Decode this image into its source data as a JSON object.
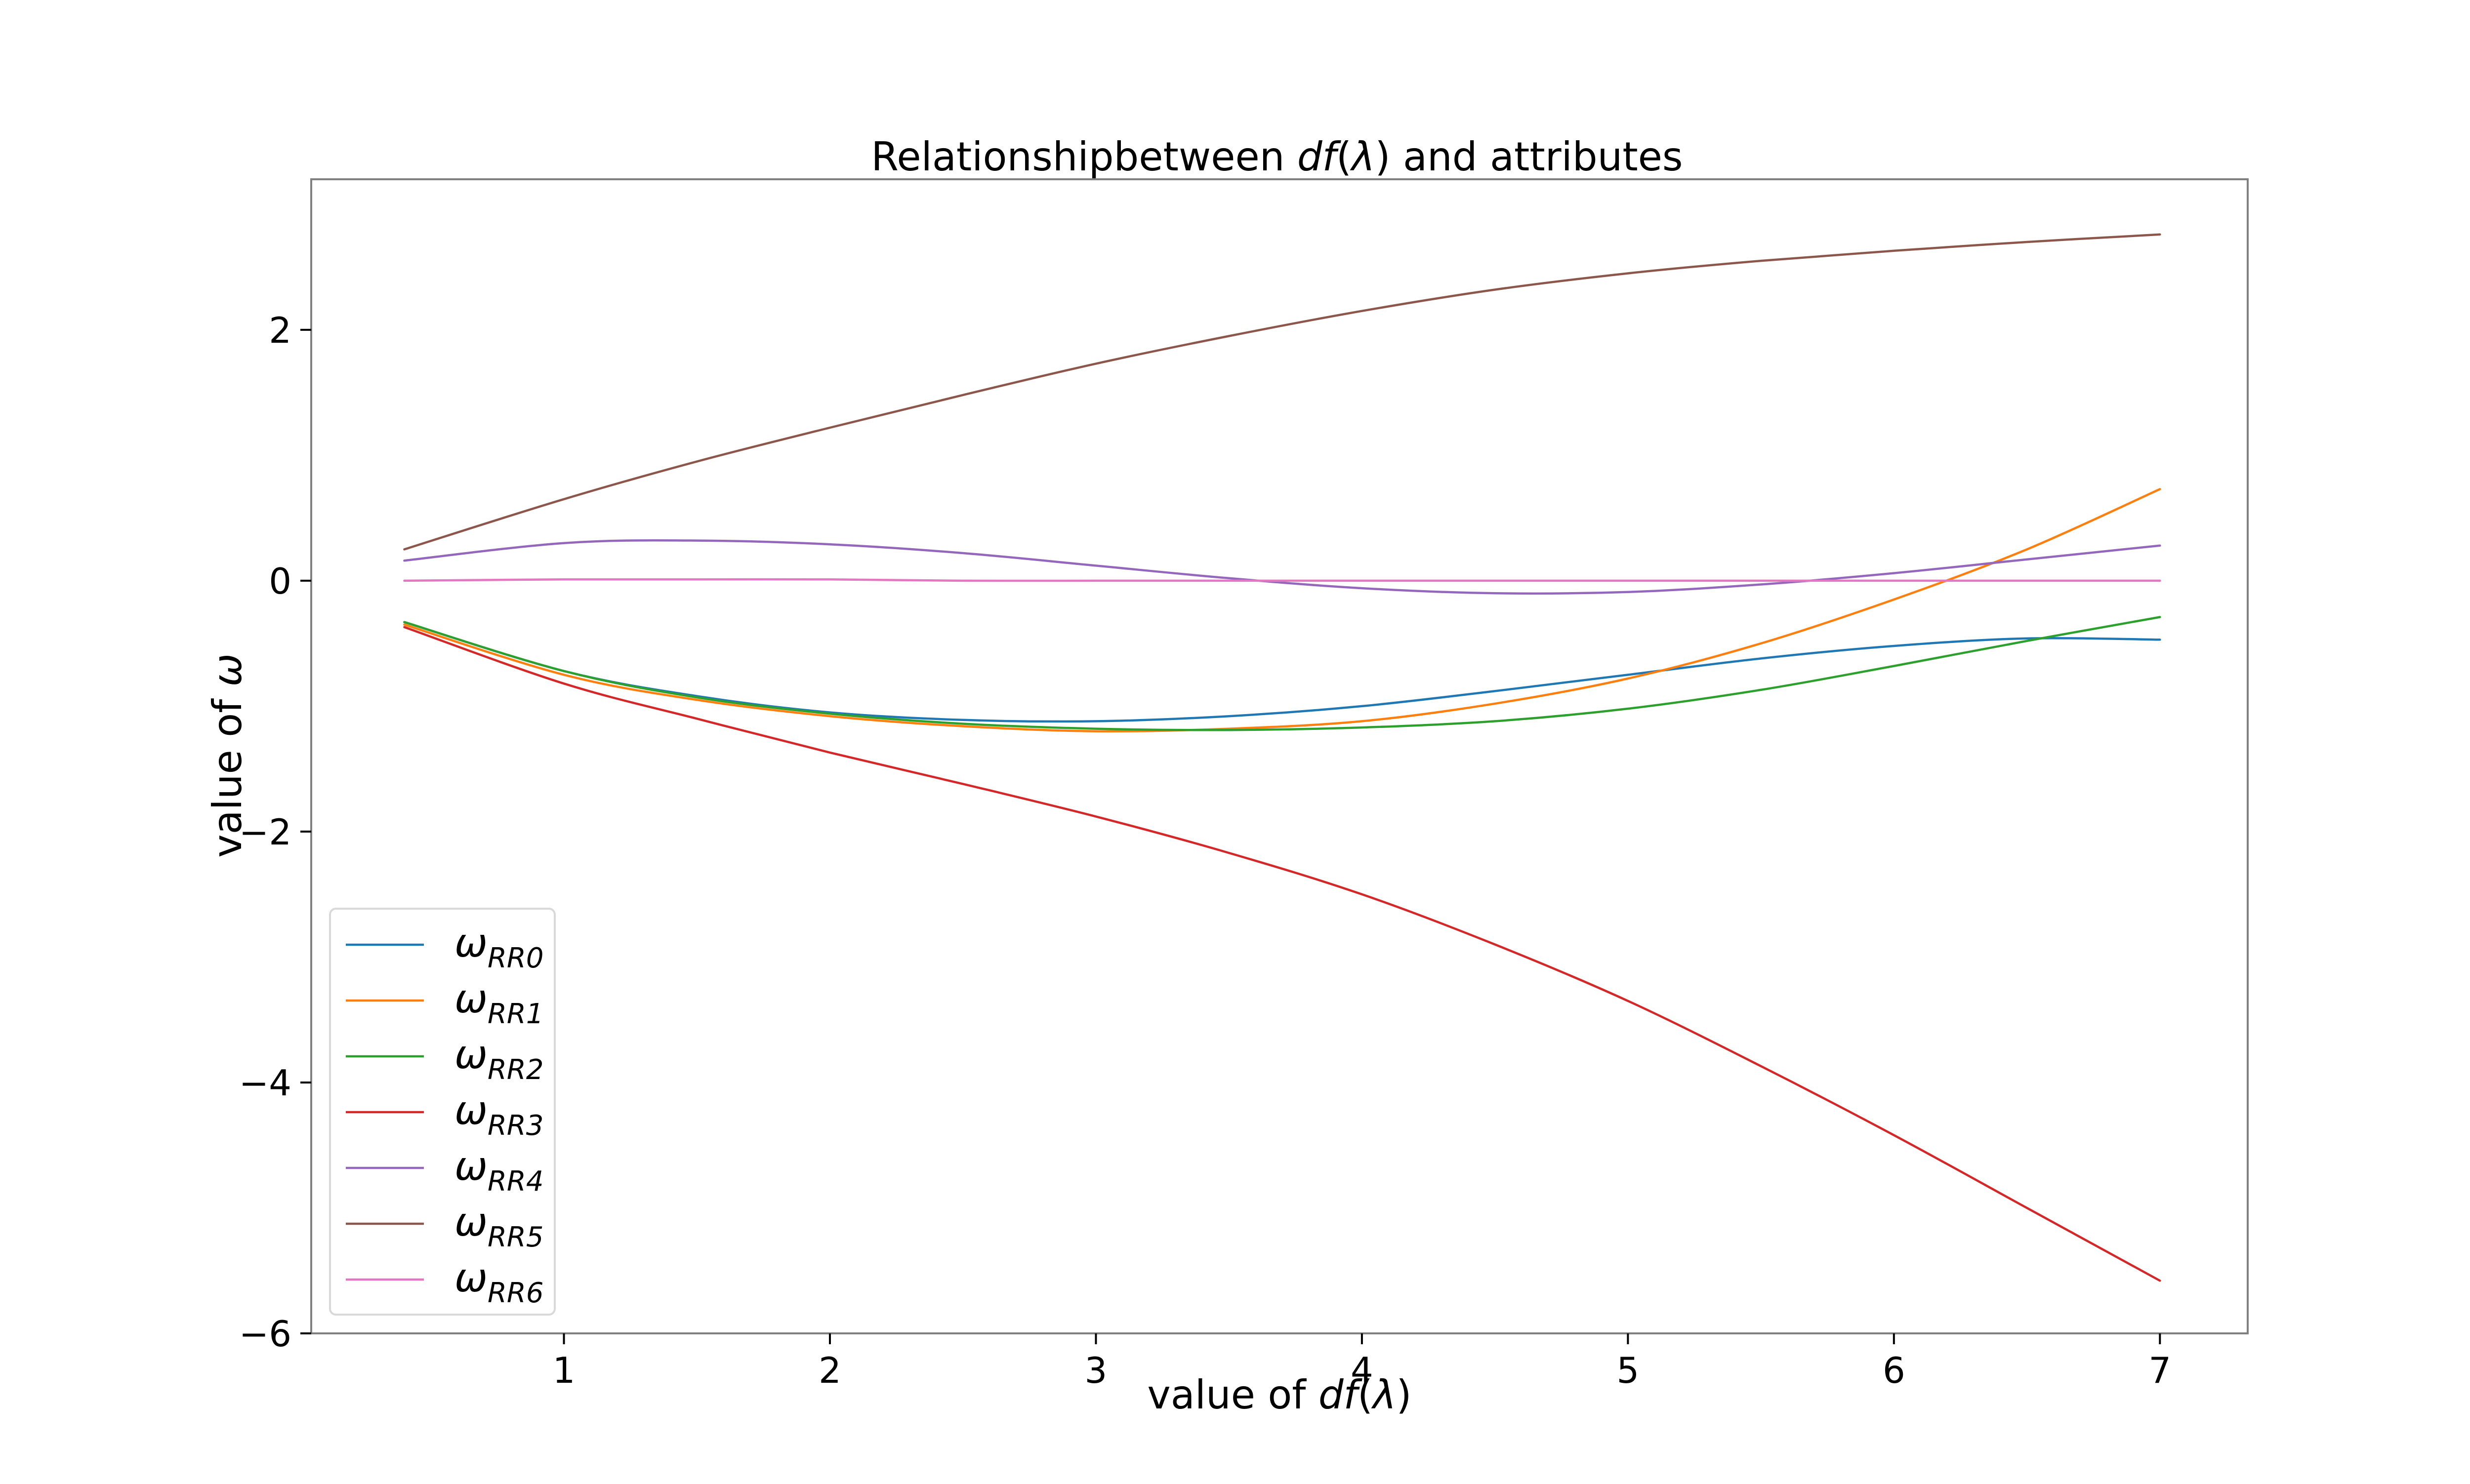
{
  "chart_data": {
    "type": "line",
    "title": {
      "prefix": "Relationshipbetween ",
      "math": "df",
      "math_paren_open": "(",
      "math_lambda": "λ",
      "math_paren_close": ")",
      "suffix": " and attributes"
    },
    "xlabel": {
      "prefix": "value of ",
      "math": "df",
      "paren_open": "(",
      "lambda": "λ",
      "paren_close": ")"
    },
    "ylabel": {
      "prefix": "value of ",
      "omega": "ω"
    },
    "xlim": [
      0.05,
      7.33
    ],
    "ylim": [
      -6.0,
      3.2
    ],
    "xticks": [
      1,
      2,
      3,
      4,
      5,
      6,
      7
    ],
    "xtick_labels": [
      "1",
      "2",
      "3",
      "4",
      "5",
      "6",
      "7"
    ],
    "yticks": [
      2,
      0,
      -2,
      -4,
      -6
    ],
    "ytick_labels": [
      "2",
      "0",
      "−2",
      "−4",
      "−6"
    ],
    "grid": false,
    "legend_position": "lower-left",
    "series": [
      {
        "name": "ω_RR0",
        "symbol": "ω",
        "subscript": "RR0",
        "color": "#1f77b4",
        "x": [
          0.4,
          1.0,
          1.5,
          2.0,
          2.5,
          3.0,
          3.5,
          4.0,
          4.5,
          5.0,
          5.5,
          6.0,
          6.5,
          7.0
        ],
        "y": [
          -0.33,
          -0.72,
          -0.92,
          -1.05,
          -1.11,
          -1.12,
          -1.08,
          -1.0,
          -0.88,
          -0.75,
          -0.62,
          -0.52,
          -0.46,
          -0.47
        ]
      },
      {
        "name": "ω_RR1",
        "symbol": "ω",
        "subscript": "RR1",
        "color": "#ff7f0e",
        "x": [
          0.4,
          1.0,
          1.5,
          2.0,
          2.5,
          3.0,
          3.5,
          4.0,
          4.5,
          5.0,
          5.5,
          6.0,
          6.5,
          7.0
        ],
        "y": [
          -0.35,
          -0.75,
          -0.95,
          -1.08,
          -1.16,
          -1.2,
          -1.18,
          -1.12,
          -0.98,
          -0.78,
          -0.5,
          -0.15,
          0.25,
          0.73
        ]
      },
      {
        "name": "ω_RR2",
        "symbol": "ω",
        "subscript": "RR2",
        "color": "#2ca02c",
        "x": [
          0.4,
          1.0,
          1.5,
          2.0,
          2.5,
          3.0,
          3.5,
          4.0,
          4.5,
          5.0,
          5.5,
          6.0,
          6.5,
          7.0
        ],
        "y": [
          -0.33,
          -0.72,
          -0.93,
          -1.06,
          -1.14,
          -1.18,
          -1.19,
          -1.17,
          -1.12,
          -1.02,
          -0.87,
          -0.68,
          -0.48,
          -0.29
        ]
      },
      {
        "name": "ω_RR3",
        "symbol": "ω",
        "subscript": "RR3",
        "color": "#d62728",
        "x": [
          0.4,
          1.0,
          1.5,
          2.0,
          2.5,
          3.0,
          3.5,
          4.0,
          4.5,
          5.0,
          5.5,
          6.0,
          6.5,
          7.0
        ],
        "y": [
          -0.37,
          -0.82,
          -1.1,
          -1.37,
          -1.62,
          -1.88,
          -2.17,
          -2.5,
          -2.9,
          -3.35,
          -3.87,
          -4.42,
          -5.0,
          -5.58
        ]
      },
      {
        "name": "ω_RR4",
        "symbol": "ω",
        "subscript": "RR4",
        "color": "#9467bd",
        "x": [
          0.4,
          1.0,
          1.5,
          2.0,
          2.5,
          3.0,
          3.5,
          4.0,
          4.5,
          5.0,
          5.5,
          6.0,
          6.5,
          7.0
        ],
        "y": [
          0.16,
          0.3,
          0.32,
          0.29,
          0.22,
          0.12,
          0.02,
          -0.06,
          -0.1,
          -0.09,
          -0.03,
          0.06,
          0.17,
          0.28
        ]
      },
      {
        "name": "ω_RR5",
        "symbol": "ω",
        "subscript": "RR5",
        "color": "#8c564b",
        "x": [
          0.4,
          1.0,
          1.5,
          2.0,
          2.5,
          3.0,
          3.5,
          4.0,
          4.5,
          5.0,
          5.5,
          6.0,
          6.5,
          7.0
        ],
        "y": [
          0.25,
          0.65,
          0.95,
          1.22,
          1.48,
          1.73,
          1.95,
          2.15,
          2.32,
          2.45,
          2.55,
          2.63,
          2.7,
          2.76
        ]
      },
      {
        "name": "ω_RR6",
        "symbol": "ω",
        "subscript": "RR6",
        "color": "#e377c2",
        "x": [
          0.4,
          1.0,
          1.5,
          2.0,
          2.5,
          3.0,
          3.5,
          4.0,
          4.5,
          5.0,
          5.5,
          6.0,
          6.5,
          7.0
        ],
        "y": [
          0.0,
          0.01,
          0.01,
          0.01,
          0.0,
          0.0,
          0.0,
          0.0,
          0.0,
          0.0,
          0.0,
          0.0,
          0.0,
          0.0
        ]
      }
    ]
  }
}
